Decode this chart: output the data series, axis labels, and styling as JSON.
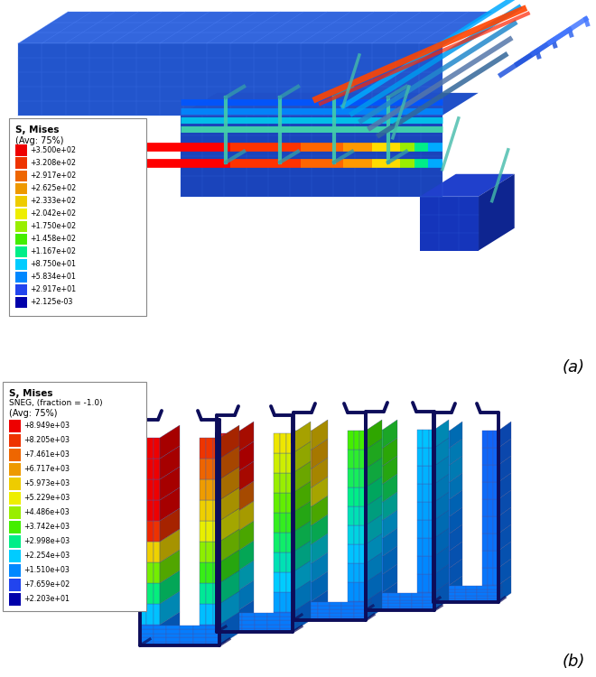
{
  "panel_a_label": "(a)",
  "panel_b_label": "(b)",
  "legend_a": {
    "title_line1": "S, Mises",
    "title_line2": "(Avg: 75%)",
    "values": [
      "+3.500e+02",
      "+3.208e+02",
      "+2.917e+02",
      "+2.625e+02",
      "+2.333e+02",
      "+2.042e+02",
      "+1.750e+02",
      "+1.458e+02",
      "+1.167e+02",
      "+8.750e+01",
      "+5.834e+01",
      "+2.917e+01",
      "+2.125e-03"
    ],
    "colors": [
      "#EE0000",
      "#EE3300",
      "#EE6600",
      "#EE9900",
      "#EECC00",
      "#EEEE00",
      "#99EE00",
      "#44EE00",
      "#00EE88",
      "#00CCFF",
      "#0088FF",
      "#2244EE",
      "#0000AA"
    ]
  },
  "legend_b": {
    "title_line1": "S, Mises",
    "title_line2": "SNEG, (fraction = -1.0)",
    "title_line3": "(Avg: 75%)",
    "values": [
      "+8.949e+03",
      "+8.205e+03",
      "+7.461e+03",
      "+6.717e+03",
      "+5.973e+03",
      "+5.229e+03",
      "+4.486e+03",
      "+3.742e+03",
      "+2.998e+03",
      "+2.254e+03",
      "+1.510e+03",
      "+7.659e+02",
      "+2.203e+01"
    ],
    "colors": [
      "#EE0000",
      "#EE3300",
      "#EE6600",
      "#EE9900",
      "#EECC00",
      "#EEEE00",
      "#99EE00",
      "#44EE00",
      "#00EE88",
      "#00CCFF",
      "#0088FF",
      "#2244EE",
      "#0000AA"
    ]
  },
  "bg": "#FFFFFF",
  "beam_blue_light": "#3366DD",
  "beam_blue_mid": "#1133BB",
  "beam_blue_dark": "#001199",
  "beam_blue_top": "#2255CC",
  "grid_color": "#4477EE",
  "wire_color": "#0a0a6e",
  "stirrup_wire": "#0d0d5a"
}
